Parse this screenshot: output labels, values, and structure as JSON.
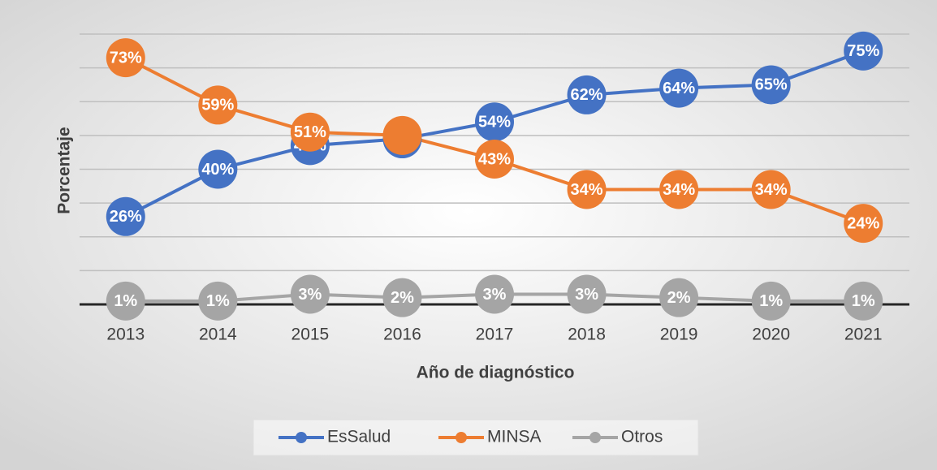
{
  "chart_data": {
    "type": "line",
    "xlabel": "Año de diagnóstico",
    "ylabel": "Porcentaje",
    "categories": [
      "2013",
      "2014",
      "2015",
      "2016",
      "2017",
      "2018",
      "2019",
      "2020",
      "2021"
    ],
    "ylim": [
      0,
      80
    ],
    "yticks": [
      0,
      10,
      20,
      30,
      40,
      50,
      60,
      70,
      80
    ],
    "grid": true,
    "legend": "bottom",
    "series": [
      {
        "name": "EsSalud",
        "color": "#4472c4",
        "values": [
          26,
          40,
          47,
          49,
          54,
          62,
          64,
          65,
          75
        ],
        "value_labels": [
          "26%",
          "40%",
          "47%",
          null,
          "54%",
          "62%",
          "64%",
          "65%",
          "75%"
        ]
      },
      {
        "name": "MINSA",
        "color": "#ed7d31",
        "values": [
          73,
          59,
          51,
          50,
          43,
          34,
          34,
          34,
          24
        ],
        "value_labels": [
          "73%",
          "59%",
          "51%",
          null,
          "43%",
          "34%",
          "34%",
          "34%",
          "24%"
        ]
      },
      {
        "name": "Otros",
        "color": "#a5a5a5",
        "values": [
          1,
          1,
          3,
          2,
          3,
          3,
          2,
          1,
          1
        ],
        "value_labels": [
          "1%",
          "1%",
          "3%",
          "2%",
          "3%",
          "3%",
          "2%",
          "1%",
          "1%"
        ]
      }
    ]
  }
}
